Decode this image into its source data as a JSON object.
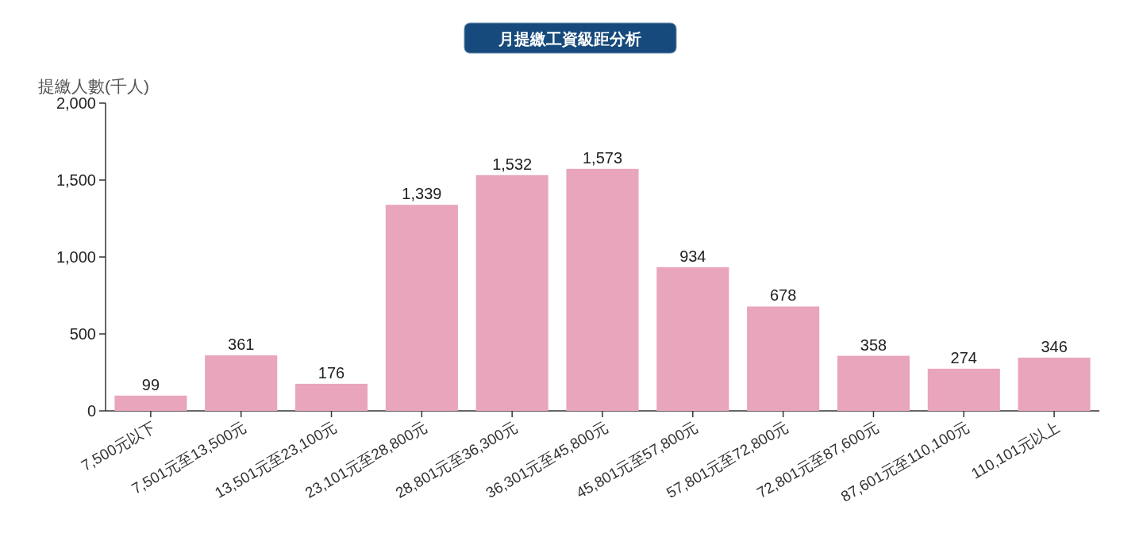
{
  "chart_data": {
    "type": "bar",
    "title": "月提繳工資級距分析",
    "ylabel": "提繳人數(千人)",
    "categories": [
      "7,500元以下",
      "7,501元至13,500元",
      "13,501元至23,100元",
      "23,101元至28,800元",
      "28,801元至36,300元",
      "36,301元至45,800元",
      "45,801元至57,800元",
      "57,801元至72,800元",
      "72,801元至87,600元",
      "87,601元至110,100元",
      "110,101元以上"
    ],
    "values": [
      99,
      361,
      176,
      1339,
      1532,
      1573,
      934,
      678,
      358,
      274,
      346
    ],
    "value_labels": [
      "99",
      "361",
      "176",
      "1,339",
      "1,532",
      "1,573",
      "934",
      "678",
      "358",
      "274",
      "346"
    ],
    "color": "#e8a5bb",
    "ylim": [
      0,
      2000
    ],
    "yticks": [
      0,
      {
        "value": 500,
        "label": "500"
      },
      {
        "value": 1000,
        "label": "1,000"
      },
      {
        "value": 1500,
        "label": "1,500"
      },
      {
        "value": 2000,
        "label": "2,000"
      }
    ],
    "grid": false
  }
}
